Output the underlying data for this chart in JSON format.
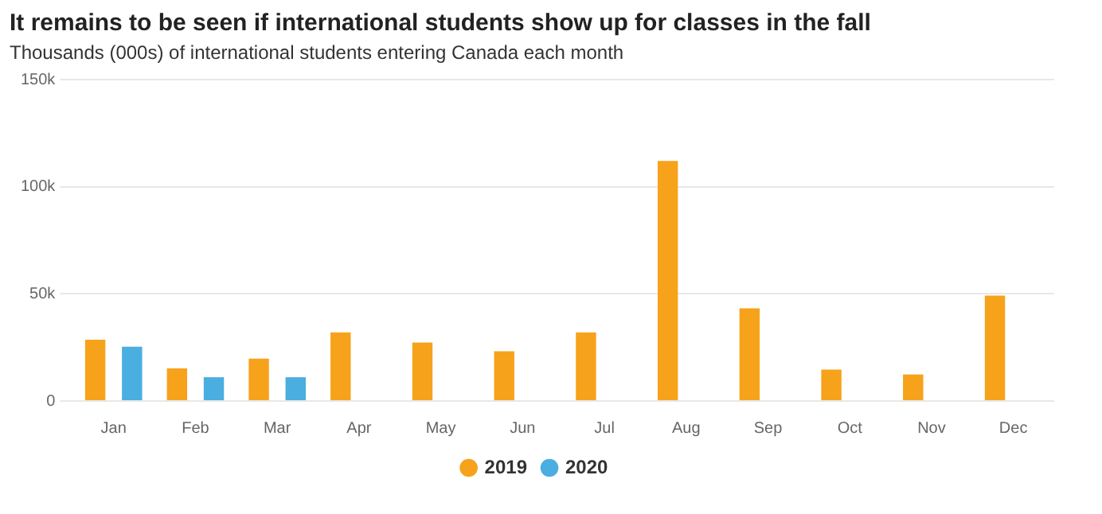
{
  "chart_data": {
    "type": "bar",
    "title": "It remains to be seen if international students show up for classes in the fall",
    "subtitle": "Thousands (000s) of international students entering Canada each month",
    "categories": [
      "Jan",
      "Feb",
      "Mar",
      "Apr",
      "May",
      "Jun",
      "Jul",
      "Aug",
      "Sep",
      "Oct",
      "Nov",
      "Dec"
    ],
    "series": [
      {
        "name": "2019",
        "color": "#f7a21b",
        "values": [
          28.6,
          15.2,
          19.8,
          32,
          27.3,
          23.2,
          32,
          112,
          43.3,
          14.7,
          12.4,
          49.2
        ]
      },
      {
        "name": "2020",
        "color": "#4aaee0",
        "values": [
          25.3,
          11.1,
          11.1,
          null,
          null,
          null,
          null,
          null,
          null,
          null,
          null,
          null
        ]
      }
    ],
    "ylim": [
      0,
      150
    ],
    "yticks": [
      0,
      {
        "value": 50,
        "label": "50k"
      },
      {
        "value": 100,
        "label": "100k"
      },
      {
        "value": 150,
        "label": "150k"
      }
    ],
    "grid": "y",
    "legend": "bottom"
  }
}
